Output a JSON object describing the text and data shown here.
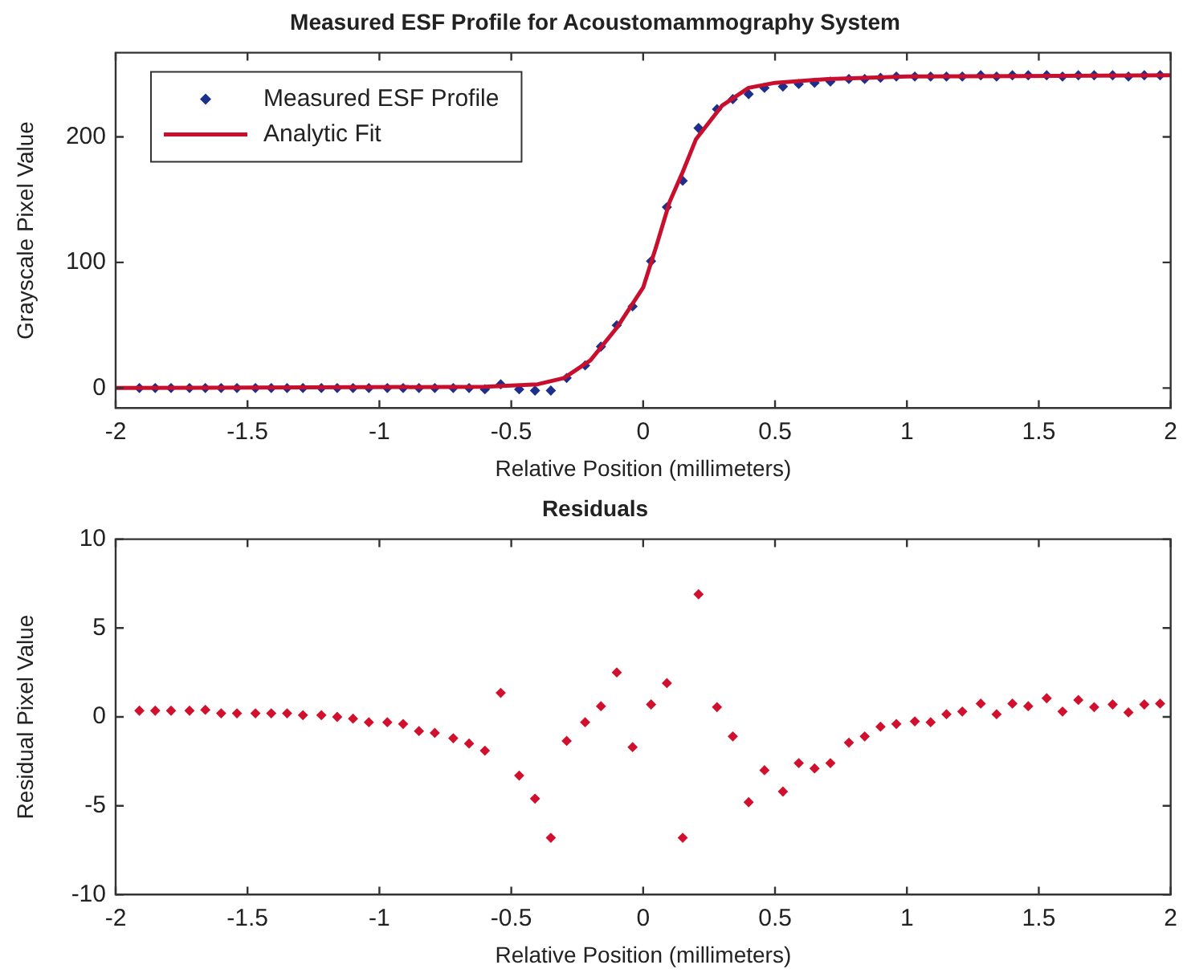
{
  "chart_data": [
    {
      "type": "scatter",
      "title": "Measured ESF Profile for Acoustomammography System",
      "xlabel": "Relative Position (millimeters)",
      "ylabel": "Grayscale Pixel Value",
      "xlim": [
        -2,
        2
      ],
      "xticks": [
        -2,
        -1.5,
        -1,
        -0.5,
        0,
        0.5,
        1,
        1.5,
        2
      ],
      "ylim": [
        -16,
        267
      ],
      "yticks": [
        0,
        100,
        200
      ],
      "legend": "top left",
      "marker": "diamond",
      "x": [
        -1.91,
        -1.85,
        -1.79,
        -1.72,
        -1.66,
        -1.6,
        -1.54,
        -1.47,
        -1.41,
        -1.35,
        -1.29,
        -1.22,
        -1.16,
        -1.1,
        -1.04,
        -0.97,
        -0.91,
        -0.85,
        -0.79,
        -0.72,
        -0.66,
        -0.6,
        -0.54,
        -0.47,
        -0.41,
        -0.35,
        -0.29,
        -0.22,
        -0.16,
        -0.1,
        -0.04,
        0.03,
        0.09,
        0.15,
        0.21,
        0.28,
        0.34,
        0.4,
        0.46,
        0.53,
        0.59,
        0.65,
        0.71,
        0.78,
        0.84,
        0.9,
        0.96,
        1.03,
        1.09,
        1.15,
        1.21,
        1.28,
        1.34,
        1.4,
        1.46,
        1.53,
        1.59,
        1.65,
        1.71,
        1.78,
        1.84,
        1.9,
        1.96
      ],
      "series": [
        {
          "name": "Measured ESF Profile",
          "color": "#1c2f8c",
          "values": [
            0,
            0,
            0,
            0,
            0,
            0,
            0,
            0,
            0,
            0,
            0,
            0,
            0,
            0,
            0,
            0,
            0,
            0,
            0,
            0,
            0,
            -1,
            3,
            -1,
            -2,
            -2,
            8,
            18,
            33,
            50,
            65,
            101,
            144,
            165,
            207,
            222,
            230,
            234,
            239,
            240,
            242,
            243,
            244,
            246,
            246,
            247,
            248,
            248,
            248,
            248,
            248,
            249,
            248,
            249,
            249,
            249,
            248,
            249,
            249,
            249,
            248,
            249,
            249
          ]
        },
        {
          "name": "Analytic Fit",
          "type": "line",
          "marker": "none",
          "color": "#c8102e",
          "x": [
            -2,
            -0.6,
            -0.4,
            -0.3,
            -0.2,
            -0.1,
            0,
            0.05,
            0.1,
            0.15,
            0.2,
            0.3,
            0.4,
            0.5,
            0.7,
            1,
            2
          ],
          "values": [
            0,
            1,
            3,
            8,
            22,
            48,
            80,
            113,
            148,
            172,
            198,
            225,
            239,
            243,
            246,
            248,
            249
          ]
        }
      ]
    },
    {
      "type": "scatter",
      "title": "Residuals",
      "xlabel": "Relative Position (millimeters)",
      "ylabel": "Residual Pixel Value",
      "xlim": [
        -2,
        2
      ],
      "xticks": [
        -2,
        -1.5,
        -1,
        -0.5,
        0,
        0.5,
        1,
        1.5,
        2
      ],
      "ylim": [
        -10,
        10
      ],
      "yticks": [
        -10,
        -5,
        0,
        5,
        10
      ],
      "marker": "diamond",
      "x": [
        -1.91,
        -1.85,
        -1.79,
        -1.72,
        -1.66,
        -1.6,
        -1.54,
        -1.47,
        -1.41,
        -1.35,
        -1.29,
        -1.22,
        -1.16,
        -1.1,
        -1.04,
        -0.97,
        -0.91,
        -0.85,
        -0.79,
        -0.72,
        -0.66,
        -0.6,
        -0.54,
        -0.47,
        -0.41,
        -0.35,
        -0.29,
        -0.22,
        -0.16,
        -0.1,
        -0.04,
        0.03,
        0.09,
        0.15,
        0.21,
        0.28,
        0.34,
        0.4,
        0.46,
        0.53,
        0.59,
        0.65,
        0.71,
        0.78,
        0.84,
        0.9,
        0.96,
        1.03,
        1.09,
        1.15,
        1.21,
        1.28,
        1.34,
        1.4,
        1.46,
        1.53,
        1.59,
        1.65,
        1.71,
        1.78,
        1.84,
        1.9,
        1.96
      ],
      "series": [
        {
          "color": "#d0102c",
          "values": [
            0.35,
            0.35,
            0.35,
            0.35,
            0.4,
            0.2,
            0.2,
            0.2,
            0.2,
            0.2,
            0.1,
            0.1,
            0,
            -0.1,
            -0.3,
            -0.3,
            -0.4,
            -0.8,
            -0.9,
            -1.2,
            -1.5,
            -1.9,
            1.35,
            -3.3,
            -4.6,
            -6.8,
            -1.35,
            -0.3,
            0.6,
            2.5,
            -1.7,
            0.7,
            1.9,
            -6.8,
            6.9,
            0.55,
            -1.1,
            -4.8,
            -3,
            -4.2,
            -2.6,
            -2.9,
            -2.6,
            -1.45,
            -1.1,
            -0.55,
            -0.4,
            -0.25,
            -0.3,
            0.15,
            0.3,
            0.75,
            0.15,
            0.75,
            0.6,
            1.05,
            0.3,
            0.95,
            0.55,
            0.7,
            0.25,
            0.7,
            0.75
          ]
        }
      ]
    }
  ]
}
